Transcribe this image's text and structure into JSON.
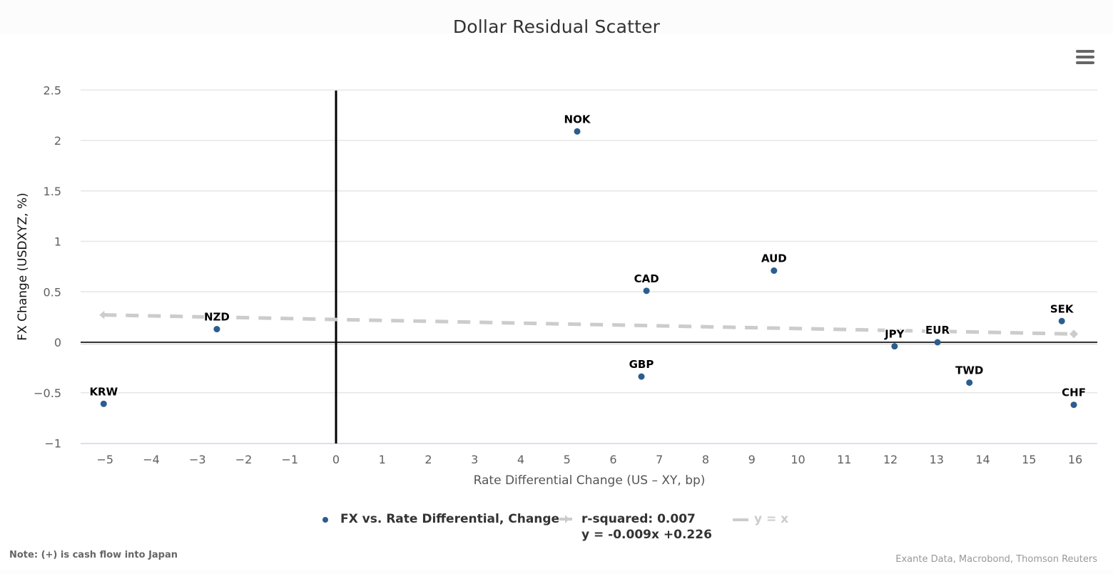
{
  "title": "Dollar Residual Scatter",
  "menu": {
    "icon": "hamburger-menu-icon"
  },
  "axes": {
    "x_title": "Rate Differential Change (US – XY, bp)",
    "y_title": "FX Change (USDXYZ, %)",
    "x_ticks": [
      "−5",
      "−4",
      "−3",
      "−2",
      "−1",
      "0",
      "1",
      "2",
      "3",
      "4",
      "5",
      "6",
      "7",
      "8",
      "9",
      "10",
      "11",
      "12",
      "13",
      "14",
      "15",
      "16"
    ],
    "y_ticks": [
      "2.5",
      "2",
      "1.5",
      "1",
      "0.5",
      "0",
      "−0.5",
      "−1"
    ]
  },
  "legend": {
    "series_label": "FX vs. Rate Differential, Change",
    "trend_line1": "r-squared: 0.007",
    "trend_line2": "y = -0.009x +0.226",
    "yx_label": "y = x"
  },
  "note": "Note: (+) is cash flow into Japan",
  "credits": "Exante Data, Macrobond, Thomson Reuters",
  "colors": {
    "point": "#2b5d8f",
    "trend": "#cccccc",
    "axis_zero": "#000000",
    "grid": "#e6e6e6"
  },
  "chart_data": {
    "type": "scatter",
    "title": "Dollar Residual Scatter",
    "xlabel": "Rate Differential Change (US – XY, bp)",
    "ylabel": "FX Change (USDXYZ, %)",
    "xlim": [
      -5.5,
      16.5
    ],
    "ylim": [
      -1,
      2.5
    ],
    "grid": true,
    "legend_position": "bottom",
    "series": [
      {
        "name": "FX vs. Rate Differential, Change",
        "points": [
          {
            "label": "KRW",
            "x": -5.03,
            "y": -0.61
          },
          {
            "label": "NZD",
            "x": -2.58,
            "y": 0.13
          },
          {
            "label": "NOK",
            "x": 5.22,
            "y": 2.09
          },
          {
            "label": "CAD",
            "x": 6.72,
            "y": 0.51
          },
          {
            "label": "GBP",
            "x": 6.61,
            "y": -0.34
          },
          {
            "label": "AUD",
            "x": 9.48,
            "y": 0.71
          },
          {
            "label": "JPY",
            "x": 12.09,
            "y": -0.04
          },
          {
            "label": "EUR",
            "x": 13.02,
            "y": 0.0
          },
          {
            "label": "TWD",
            "x": 13.71,
            "y": -0.4
          },
          {
            "label": "SEK",
            "x": 15.71,
            "y": 0.21
          },
          {
            "label": "CHF",
            "x": 15.97,
            "y": -0.62
          }
        ]
      },
      {
        "name": "r-squared: 0.007 / y = -0.009x +0.226",
        "type": "line",
        "dashed": true,
        "points": [
          {
            "x": -5.03,
            "y": 0.271
          },
          {
            "x": 15.97,
            "y": 0.082
          }
        ]
      },
      {
        "name": "y = x",
        "type": "line",
        "visible": false,
        "points": []
      }
    ],
    "regression": {
      "slope": -0.009,
      "intercept": 0.226,
      "r_squared": 0.007
    },
    "reference_lines": [
      {
        "axis": "x",
        "value": 0
      },
      {
        "axis": "y",
        "value": 0
      }
    ]
  }
}
